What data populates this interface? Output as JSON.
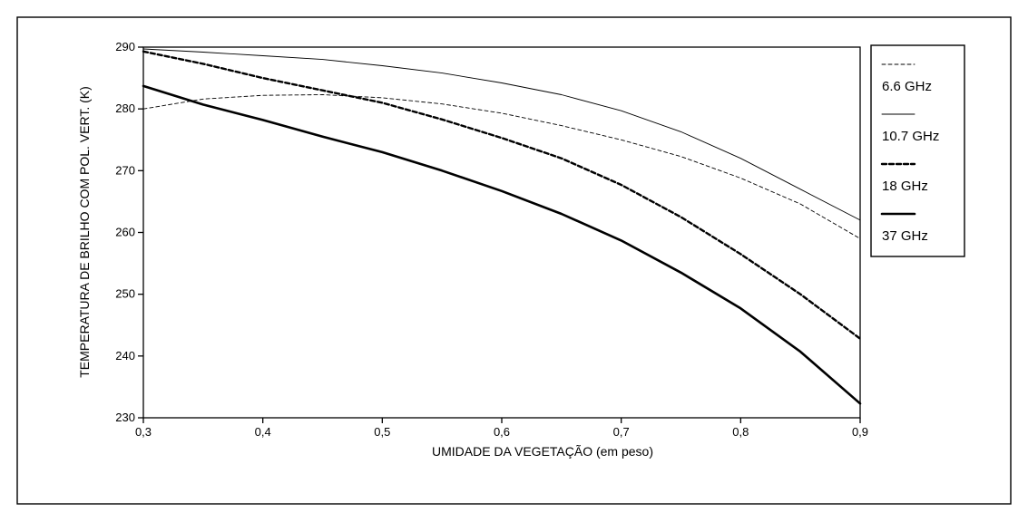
{
  "chart_data": {
    "type": "line",
    "title": "",
    "xlabel": "UMIDADE DA VEGETAÇÃO (em peso)",
    "ylabel": "TEMPERATURA DE BRILHO COM POL. VERT. (K)",
    "xlim": [
      0.3,
      0.9
    ],
    "ylim": [
      230,
      290
    ],
    "xticks": [
      "0,3",
      "0,4",
      "0,5",
      "0,6",
      "0,7",
      "0,8",
      "0,9"
    ],
    "yticks": [
      "230",
      "240",
      "250",
      "260",
      "270",
      "280",
      "290"
    ],
    "grid": false,
    "legend_position": "right",
    "x": [
      0.3,
      0.35,
      0.4,
      0.45,
      0.5,
      0.55,
      0.6,
      0.65,
      0.7,
      0.75,
      0.8,
      0.85,
      0.9
    ],
    "series": [
      {
        "name": "6.6 GHz",
        "style": "thin-dashed",
        "values": [
          280.0,
          281.6,
          282.2,
          282.3,
          281.8,
          280.8,
          279.3,
          277.3,
          275.0,
          272.3,
          268.8,
          264.6,
          259.0
        ]
      },
      {
        "name": "10.7 GHz",
        "style": "thin-solid",
        "values": [
          289.7,
          289.2,
          288.6,
          288.0,
          287.0,
          285.8,
          284.2,
          282.3,
          279.7,
          276.3,
          272.0,
          267.0,
          262.0
        ]
      },
      {
        "name": "18 GHz",
        "style": "thick-dashed",
        "values": [
          289.3,
          287.3,
          285.0,
          283.0,
          281.0,
          278.3,
          275.3,
          272.0,
          267.7,
          262.5,
          256.5,
          250.0,
          242.8
        ]
      },
      {
        "name": "37 GHz",
        "style": "thick-solid",
        "values": [
          283.7,
          280.7,
          278.2,
          275.5,
          273.0,
          270.0,
          266.7,
          263.0,
          258.7,
          253.5,
          247.7,
          240.7,
          232.3
        ]
      }
    ]
  }
}
